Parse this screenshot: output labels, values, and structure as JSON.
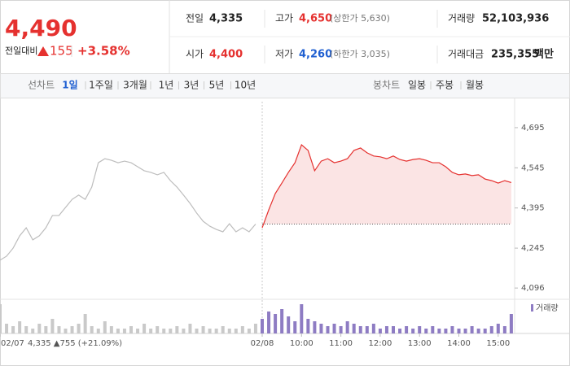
{
  "header": {
    "price": "4,490",
    "change_label": "전일대비",
    "change": "155",
    "change_pct": "+3.58%",
    "stats": [
      {
        "label": "전일",
        "value": "4,335"
      },
      {
        "label": "고가",
        "value": "4,650",
        "note": "(상한가 5,630)"
      },
      {
        "label": "거래량",
        "value": "52,103,936"
      },
      {
        "label": "시가",
        "value": "4,400"
      },
      {
        "label": "저가",
        "value": "4,260",
        "note": "(하한가 3,035)"
      },
      {
        "label": "거래대금",
        "value": "235,355",
        "unit": "백만"
      }
    ]
  },
  "tabs": {
    "line_label": "선차트",
    "line": [
      "1일",
      "1주일",
      "3개월",
      "1년",
      "3년",
      "5년",
      "10년"
    ],
    "candle_label": "봉차트",
    "candle": [
      "일봉",
      "주봉",
      "월봉"
    ]
  },
  "chart_data": {
    "type": "line",
    "categories": [
      "02/07",
      null,
      null,
      null,
      null,
      null,
      null,
      null,
      null,
      null,
      null,
      null,
      null,
      null,
      null,
      null,
      null,
      null,
      null,
      null,
      null,
      null,
      null,
      null,
      null,
      null,
      null,
      null,
      null,
      null,
      null,
      null,
      null,
      null,
      null,
      null,
      null,
      null,
      null,
      null,
      "02/08",
      null,
      null,
      null,
      null,
      null,
      "10:00",
      null,
      null,
      null,
      null,
      null,
      "11:00",
      null,
      null,
      null,
      null,
      null,
      "12:00",
      null,
      null,
      null,
      null,
      null,
      "13:00",
      null,
      null,
      null,
      null,
      null,
      "14:00",
      null,
      null,
      null,
      null,
      null,
      "15:00",
      null,
      null
    ],
    "series": [
      {
        "color": "#bdbdbd",
        "values": [
          4200,
          4215,
          4245,
          4291,
          4321,
          4276,
          4291,
          4321,
          4367,
          4367,
          4397,
          4427,
          4443,
          4427,
          4473,
          4564,
          4579,
          4573,
          4564,
          4570,
          4564,
          4549,
          4534,
          4528,
          4519,
          4528,
          4497,
          4473,
          4443,
          4412,
          4376,
          4345,
          4327,
          4315,
          4306,
          4336,
          4306,
          4321,
          4306,
          4335,
          null,
          null,
          null,
          null,
          null,
          null,
          null,
          null,
          null,
          null,
          null,
          null,
          null,
          null,
          null,
          null,
          null,
          null,
          null,
          null,
          null,
          null,
          null,
          null,
          null,
          null,
          null,
          null,
          null,
          null,
          null,
          null,
          null,
          null,
          null,
          null,
          null,
          null,
          null
        ]
      },
      {
        "color": "#e5312f",
        "fill": "#fbe4e4",
        "values": [
          null,
          null,
          null,
          null,
          null,
          null,
          null,
          null,
          null,
          null,
          null,
          null,
          null,
          null,
          null,
          null,
          null,
          null,
          null,
          null,
          null,
          null,
          null,
          null,
          null,
          null,
          null,
          null,
          null,
          null,
          null,
          null,
          null,
          null,
          null,
          null,
          null,
          null,
          null,
          null,
          4321,
          4388,
          4449,
          4488,
          4528,
          4564,
          4631,
          4610,
          4534,
          4570,
          4579,
          4564,
          4570,
          4579,
          4610,
          4619,
          4601,
          4589,
          4586,
          4579,
          4589,
          4576,
          4570,
          4576,
          4579,
          4573,
          4564,
          4564,
          4549,
          4528,
          4519,
          4522,
          4516,
          4519,
          4503,
          4497,
          4488,
          4497,
          4490
        ]
      }
    ],
    "baseline": 4335,
    "ylim": [
      4063,
      4792
    ],
    "yticks": [
      {
        "value": 4096,
        "label": "4,096"
      },
      {
        "value": 4245,
        "label": "4,245"
      },
      {
        "value": 4395,
        "label": "4,395"
      },
      {
        "value": 4545,
        "label": "4,545"
      },
      {
        "value": 4695,
        "label": "4,695"
      }
    ],
    "volume": {
      "name": "거래량",
      "color": "#8e7cc3",
      "prev_color": "#c9c9c9",
      "values": [
        12,
        4,
        3,
        5,
        3,
        2,
        4,
        3,
        6,
        3,
        2,
        3,
        4,
        8,
        3,
        2,
        5,
        3,
        2,
        2,
        3,
        2,
        4,
        2,
        3,
        2,
        2,
        3,
        2,
        4,
        2,
        3,
        2,
        2,
        3,
        2,
        2,
        3,
        2,
        4,
        6,
        9,
        8,
        10,
        7,
        5,
        12,
        6,
        5,
        4,
        3,
        4,
        3,
        5,
        4,
        3,
        3,
        4,
        2,
        3,
        3,
        2,
        3,
        2,
        3,
        2,
        3,
        2,
        2,
        3,
        2,
        2,
        3,
        2,
        2,
        3,
        4,
        3,
        8
      ]
    },
    "x_note": "4,335 ▲755 (+21.09%)"
  }
}
